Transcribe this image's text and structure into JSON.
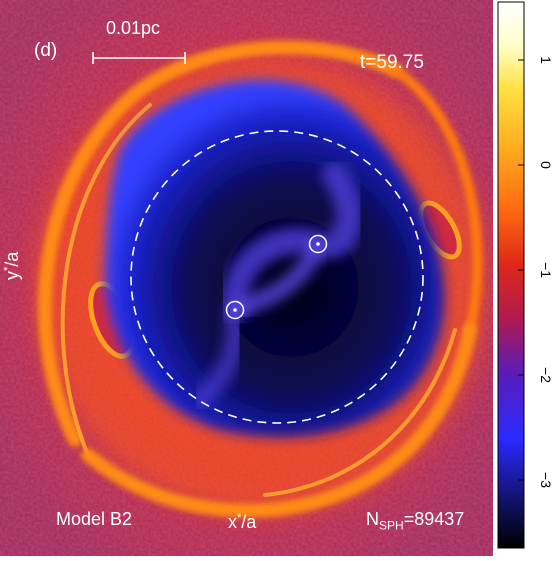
{
  "panel": {
    "letter": "(d)",
    "scale_bar_label": "0.01pc",
    "time_label": "t=59.75",
    "model_label": "Model B2",
    "nsph_prefix": "N",
    "nsph_sub": "SPH",
    "nsph_value": "=89437",
    "x_axis": {
      "base": "x",
      "sup": "*",
      "tail": "/a"
    },
    "y_axis": {
      "base": "y",
      "sup": "*",
      "tail": "/a"
    }
  },
  "colorbar": {
    "tick_labels": [
      "1",
      "0",
      "−1",
      "−2",
      "−3"
    ],
    "colors": [
      "#000000",
      "#1010a0",
      "#2a2aff",
      "#6a1aa8",
      "#d01818",
      "#ff4010",
      "#ff9a1a",
      "#ffe030",
      "#ffffd0",
      "#ffffff"
    ]
  },
  "colors": {
    "background_gas": "#c02a45",
    "ring": "#ff7a10",
    "cavity": "#08082a",
    "cavity_edge": "#2a35ff",
    "stream": "#4a3ad0"
  },
  "icons": {
    "binary_star": "circled-dot-icon",
    "orbit": "dashed-circle-icon"
  }
}
